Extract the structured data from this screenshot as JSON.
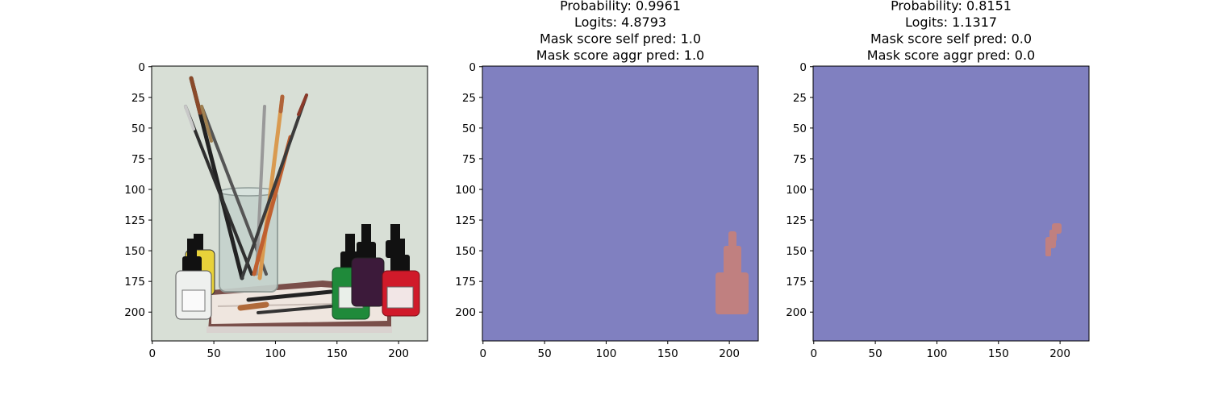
{
  "chart_data": [
    {
      "type": "image",
      "image_size": [
        224,
        224
      ],
      "title_lines": [],
      "xticks": [
        0,
        50,
        100,
        150,
        200
      ],
      "yticks": [
        0,
        25,
        50,
        75,
        100,
        125,
        150,
        175,
        200
      ],
      "image": "watercolor-brushes-ink-bottles"
    },
    {
      "type": "heatmap",
      "image_size": [
        224,
        224
      ],
      "title_lines": [
        "Probability: 0.9961",
        "Logits: 4.8793",
        "Mask score self pred: 1.0",
        "Mask score aggr pred: 1.0"
      ],
      "xticks": [
        0,
        50,
        100,
        150,
        200
      ],
      "yticks": [
        0,
        25,
        50,
        75,
        100,
        125,
        150,
        175,
        200
      ],
      "background_color": "#8080c0",
      "mask_color": "#c08080",
      "mask_region": "bottle at x 188-214, y 135-200"
    },
    {
      "type": "heatmap",
      "image_size": [
        224,
        224
      ],
      "title_lines": [
        "Probability: 0.8151",
        "Logits: 1.1317",
        "Mask score self pred: 0.0",
        "Mask score aggr pred: 0.0"
      ],
      "xticks": [
        0,
        50,
        100,
        150,
        200
      ],
      "yticks": [
        0,
        25,
        50,
        75,
        100,
        125,
        150,
        175,
        200
      ],
      "background_color": "#8080c0",
      "mask_color": "#c08080",
      "mask_region": "small blob at x 190-200, y 128-153"
    }
  ]
}
